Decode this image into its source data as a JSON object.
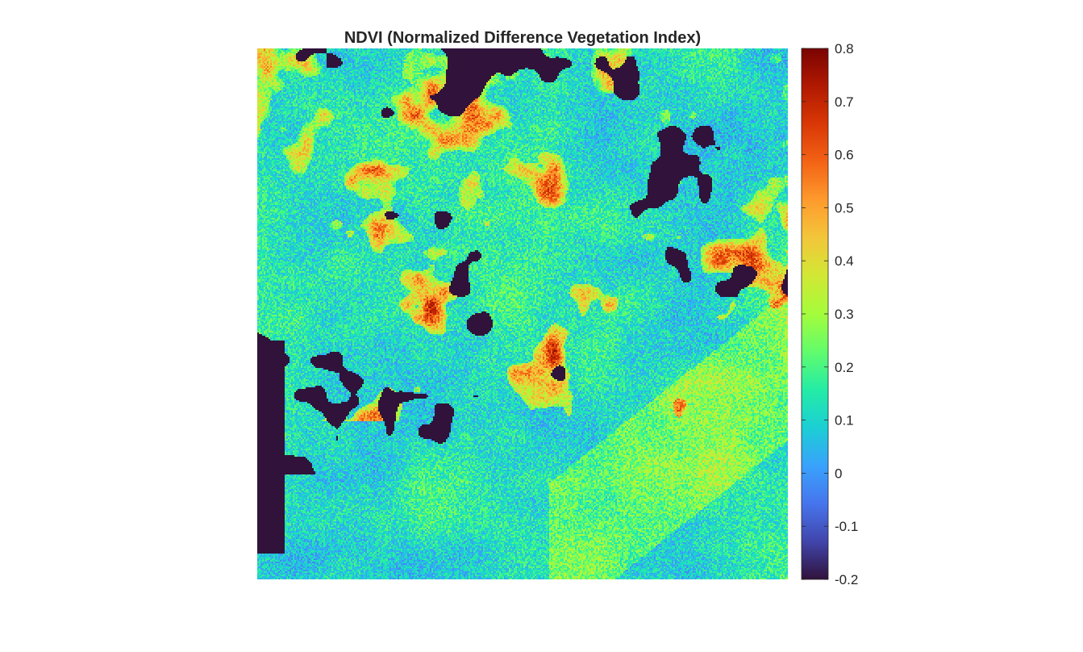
{
  "chart_data": {
    "type": "heatmap",
    "title": "NDVI (Normalized Difference Vegetation Index)",
    "xlabel": "",
    "ylabel": "",
    "axes_visible": false,
    "grid": false,
    "colormap": "turbo",
    "colormap_stops": [
      "#30123b",
      "#4145ab",
      "#4675ed",
      "#39a2fc",
      "#1bcfd4",
      "#24eca6",
      "#61fc6c",
      "#a4fc3b",
      "#d1e834",
      "#f3c63a",
      "#fe9b2d",
      "#f36315",
      "#d93806",
      "#b11901",
      "#7a0402"
    ],
    "clim": [
      -0.2,
      0.8
    ],
    "colorbar": {
      "location": "right",
      "ticks": [
        0.8,
        0.7,
        0.6,
        0.5,
        0.4,
        0.3,
        0.2,
        0.1,
        0,
        -0.1,
        -0.2
      ],
      "tick_labels": [
        "0.8",
        "0.7",
        "0.6",
        "0.5",
        "0.4",
        "0.3",
        "0.2",
        "0.1",
        "0",
        "-0.1",
        "-0.2"
      ]
    }
  }
}
